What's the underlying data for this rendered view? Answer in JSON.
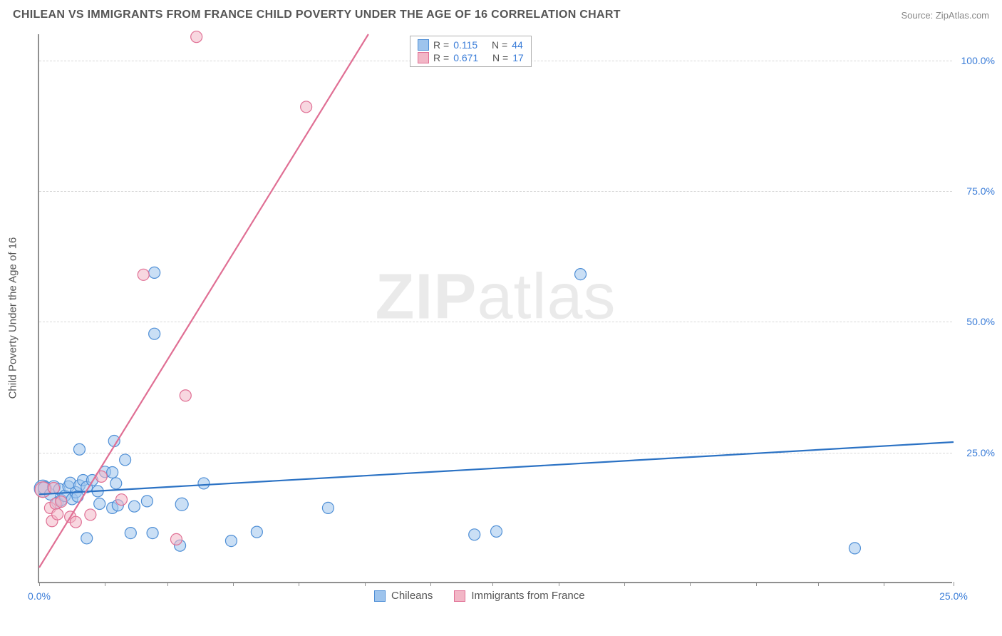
{
  "title": "CHILEAN VS IMMIGRANTS FROM FRANCE CHILD POVERTY UNDER THE AGE OF 16 CORRELATION CHART",
  "source": "Source: ZipAtlas.com",
  "watermark_bold": "ZIP",
  "watermark_light": "atlas",
  "y_axis_label": "Child Poverty Under the Age of 16",
  "chart": {
    "type": "scatter",
    "background_color": "#ffffff",
    "grid_color": "#d8d8d8",
    "axis_color": "#909090",
    "tick_label_color": "#3b7dd8",
    "xlim": [
      0,
      25
    ],
    "ylim": [
      0,
      105
    ],
    "x_ticks": [
      0,
      1.8,
      3.5,
      5.3,
      7.1,
      8.9,
      10.7,
      12.4,
      14.2,
      16.0,
      17.8,
      19.6,
      21.3,
      23.1,
      25.0
    ],
    "x_tick_labels": {
      "0": "0.0%",
      "25": "25.0%"
    },
    "y_ticks": [
      25,
      50,
      75,
      100
    ],
    "y_tick_labels": {
      "25": "25.0%",
      "50": "50.0%",
      "75": "75.0%",
      "100": "100.0%"
    },
    "series": [
      {
        "name": "Chileans",
        "fill": "#9ec4ed",
        "stroke": "#4f8fd6",
        "fill_opacity": 0.55,
        "marker_radius": 8,
        "R": "0.115",
        "N": "44",
        "trend": {
          "x1": 0,
          "y1": 17,
          "x2": 25,
          "y2": 27,
          "color": "#2b72c4"
        },
        "points": [
          [
            0.1,
            18.1,
            12
          ],
          [
            0.15,
            18.2,
            9
          ],
          [
            0.3,
            17.0,
            8
          ],
          [
            0.4,
            18.4,
            9
          ],
          [
            0.5,
            15.4,
            8
          ],
          [
            0.55,
            18.0,
            8
          ],
          [
            0.6,
            15.9,
            8
          ],
          [
            0.7,
            16.7,
            8
          ],
          [
            0.8,
            18.5,
            8
          ],
          [
            0.85,
            19.2,
            8
          ],
          [
            0.9,
            16.1,
            8
          ],
          [
            1.0,
            17.4,
            8
          ],
          [
            1.05,
            16.6,
            8
          ],
          [
            1.1,
            18.7,
            8
          ],
          [
            1.2,
            19.7,
            8
          ],
          [
            1.3,
            18.4,
            8
          ],
          [
            1.3,
            8.6,
            8
          ],
          [
            1.1,
            25.6,
            8
          ],
          [
            1.45,
            19.7,
            8
          ],
          [
            1.6,
            17.6,
            8
          ],
          [
            1.65,
            15.2,
            8
          ],
          [
            1.8,
            21.3,
            8
          ],
          [
            2.0,
            21.2,
            8
          ],
          [
            2.0,
            14.4,
            8
          ],
          [
            2.05,
            27.2,
            8
          ],
          [
            2.1,
            19.1,
            8
          ],
          [
            2.15,
            14.9,
            8
          ],
          [
            2.35,
            23.6,
            8
          ],
          [
            2.5,
            9.6,
            8
          ],
          [
            2.6,
            14.7,
            8
          ],
          [
            2.95,
            15.7,
            8
          ],
          [
            3.1,
            9.6,
            8
          ],
          [
            3.15,
            47.7,
            8
          ],
          [
            3.15,
            59.4,
            8
          ],
          [
            3.85,
            7.2,
            8
          ],
          [
            3.9,
            15.1,
            9
          ],
          [
            4.5,
            19.1,
            8
          ],
          [
            5.25,
            8.1,
            8
          ],
          [
            5.95,
            9.8,
            8
          ],
          [
            7.9,
            14.4,
            8
          ],
          [
            11.9,
            9.3,
            8
          ],
          [
            12.5,
            9.9,
            8
          ],
          [
            14.8,
            59.1,
            8
          ],
          [
            22.3,
            6.7,
            8
          ]
        ]
      },
      {
        "name": "Immigrants from France",
        "fill": "#f2b6c6",
        "stroke": "#e06f94",
        "fill_opacity": 0.55,
        "marker_radius": 8,
        "R": "0.671",
        "N": "17",
        "trend": {
          "x1": 0,
          "y1": 3,
          "x2": 9.0,
          "y2": 105,
          "color": "#e06f94"
        },
        "points": [
          [
            0.1,
            17.9,
            11
          ],
          [
            0.3,
            14.4,
            8
          ],
          [
            0.35,
            11.9,
            8
          ],
          [
            0.4,
            18.2,
            8
          ],
          [
            0.45,
            15.2,
            8
          ],
          [
            0.5,
            13.2,
            8
          ],
          [
            0.6,
            15.6,
            8
          ],
          [
            0.85,
            12.7,
            8
          ],
          [
            1.0,
            11.7,
            8
          ],
          [
            1.4,
            13.1,
            8
          ],
          [
            1.7,
            20.4,
            8
          ],
          [
            2.25,
            16.0,
            8
          ],
          [
            2.85,
            59.0,
            8
          ],
          [
            3.75,
            8.4,
            8
          ],
          [
            4.0,
            35.9,
            8
          ],
          [
            4.3,
            104.5,
            8
          ],
          [
            7.3,
            91.1,
            8
          ]
        ]
      }
    ]
  },
  "stats_labels": {
    "R": "R =",
    "N": "N ="
  }
}
